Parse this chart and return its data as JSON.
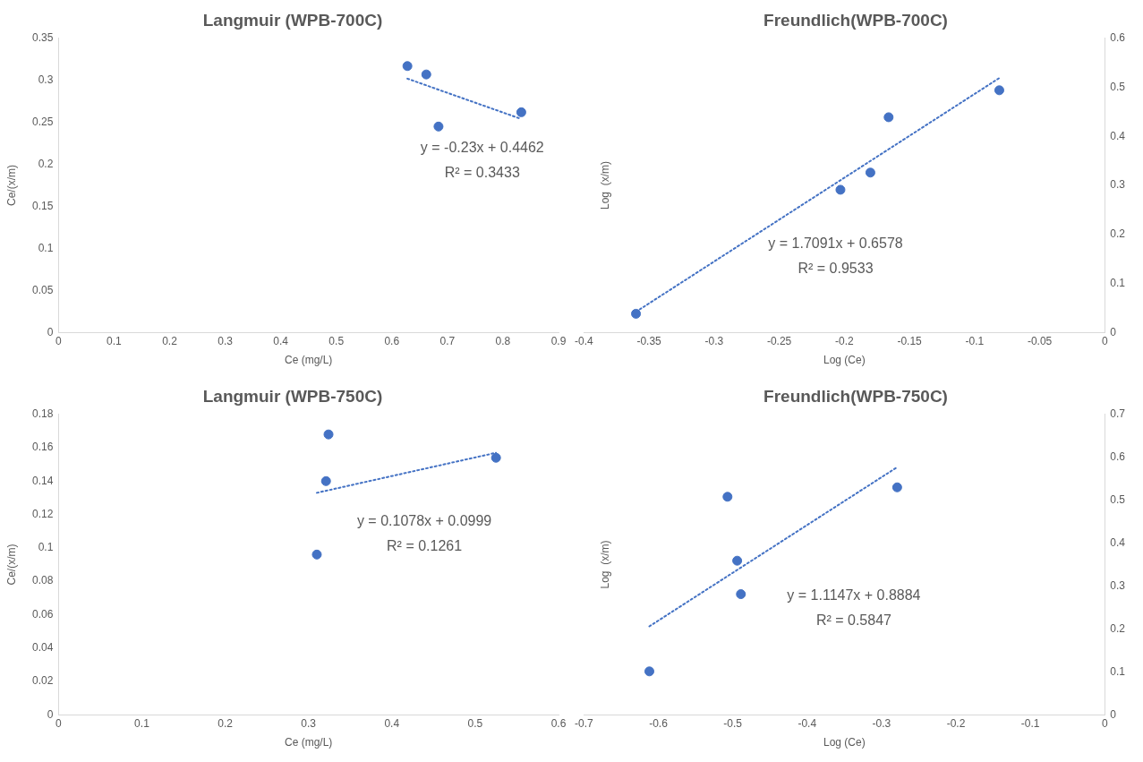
{
  "chart_data": [
    {
      "type": "scatter",
      "title": "Langmuir (WPB-700C)",
      "xlabel": "Ce (mg/L)",
      "ylabel": "Ce/(x/m)",
      "marker": "circle",
      "grid": false,
      "legend": false,
      "xlim": [
        0,
        0.9
      ],
      "xticks": [
        0,
        0.1,
        0.2,
        0.3,
        0.4,
        0.5,
        0.6,
        0.7,
        0.8,
        0.9
      ],
      "ylim": [
        0,
        0.35
      ],
      "yticks": [
        0,
        0.05,
        0.1,
        0.15,
        0.2,
        0.25,
        0.3,
        0.35
      ],
      "series": [
        {
          "type": "scatter",
          "color": "#4472c4",
          "x": [
            0.628,
            0.662,
            0.684,
            0.833
          ],
          "values": [
            0.317,
            0.307,
            0.245,
            0.262
          ]
        },
        {
          "type": "line",
          "color": "#4472c4",
          "line_style": "dotted",
          "marker": "none",
          "x": [
            0.628,
            0.833
          ],
          "values": [
            0.302,
            0.254
          ]
        }
      ],
      "annotations": [
        "y = -0.23x + 0.4462",
        "R² = 0.3433"
      ]
    },
    {
      "type": "scatter",
      "title": "Freundlich(WPB-700C)",
      "xlabel": "Log (Ce)",
      "ylabel": "Log  (x/m)",
      "marker": "circle",
      "grid": false,
      "legend": false,
      "xlim": [
        -0.4,
        0
      ],
      "xticks": [
        -0.4,
        -0.35,
        -0.3,
        -0.25,
        -0.2,
        -0.15,
        -0.1,
        -0.05,
        0
      ],
      "ylim": [
        0,
        0.6
      ],
      "yticks": [
        0,
        0.1,
        0.2,
        0.3,
        0.4,
        0.5,
        0.6
      ],
      "series": [
        {
          "type": "scatter",
          "color": "#4472c4",
          "x": [
            -0.36,
            -0.203,
            -0.18,
            -0.166,
            -0.081
          ],
          "values": [
            0.038,
            0.291,
            0.326,
            0.439,
            0.494
          ]
        },
        {
          "type": "line",
          "color": "#4472c4",
          "line_style": "dotted",
          "marker": "none",
          "x": [
            -0.36,
            -0.081
          ],
          "values": [
            0.042,
            0.519
          ]
        }
      ],
      "annotations": [
        "y = 1.7091x + 0.6578",
        "R² = 0.9533"
      ]
    },
    {
      "type": "scatter",
      "title": "Langmuir (WPB-750C)",
      "xlabel": "Ce (mg/L)",
      "ylabel": "Ce/(x/m)",
      "marker": "circle",
      "grid": false,
      "legend": false,
      "xlim": [
        0,
        0.6
      ],
      "xticks": [
        0,
        0.1,
        0.2,
        0.3,
        0.4,
        0.5,
        0.6
      ],
      "ylim": [
        0,
        0.18
      ],
      "yticks": [
        0,
        0.02,
        0.04,
        0.06,
        0.08,
        0.1,
        0.12,
        0.14,
        0.16,
        0.18
      ],
      "series": [
        {
          "type": "scatter",
          "color": "#4472c4",
          "x": [
            0.31,
            0.321,
            0.324,
            0.525
          ],
          "values": [
            0.096,
            0.14,
            0.168,
            0.154
          ]
        },
        {
          "type": "line",
          "color": "#4472c4",
          "line_style": "dotted",
          "marker": "none",
          "x": [
            0.31,
            0.525
          ],
          "values": [
            0.133,
            0.157
          ]
        }
      ],
      "annotations": [
        "y = 0.1078x + 0.0999",
        "R² = 0.1261"
      ]
    },
    {
      "type": "scatter",
      "title": "Freundlich(WPB-750C)",
      "xlabel": "Log (Ce)",
      "ylabel": "Log  (x/m)",
      "marker": "circle",
      "grid": false,
      "legend": false,
      "xlim": [
        -0.7,
        0
      ],
      "xticks": [
        -0.7,
        -0.6,
        -0.5,
        -0.4,
        -0.3,
        -0.2,
        -0.1,
        0
      ],
      "ylim": [
        0,
        0.7
      ],
      "yticks": [
        0,
        0.1,
        0.2,
        0.3,
        0.4,
        0.5,
        0.6,
        0.7
      ],
      "series": [
        {
          "type": "scatter",
          "color": "#4472c4",
          "x": [
            -0.612,
            -0.507,
            -0.494,
            -0.489,
            -0.279
          ],
          "values": [
            0.101,
            0.508,
            0.359,
            0.281,
            0.53
          ]
        },
        {
          "type": "line",
          "color": "#4472c4",
          "line_style": "dotted",
          "marker": "none",
          "x": [
            -0.612,
            -0.279
          ],
          "values": [
            0.206,
            0.577
          ]
        }
      ],
      "annotations": [
        "y = 1.1147x + 0.8884",
        "R² = 0.5847"
      ]
    }
  ]
}
